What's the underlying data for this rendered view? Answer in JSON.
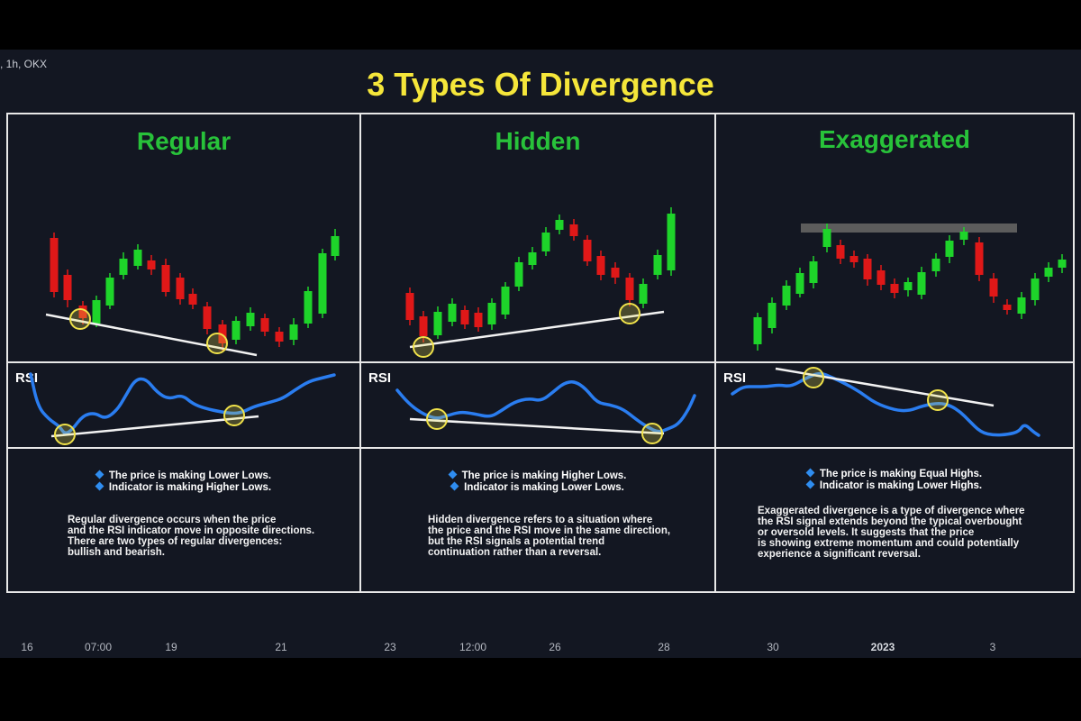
{
  "window": {
    "symbol_label": ", 1h, OKX",
    "title": "3 Types Of Divergence"
  },
  "colors": {
    "background": "#131722",
    "title": "#f5e63a",
    "panel_title": "#28c23a",
    "bull_candle": "#1ed42a",
    "bear_candle": "#e01818",
    "rsi_line": "#2a7df0",
    "highlight_circle": "#f0e24a"
  },
  "panels": [
    {
      "title": "Regular",
      "rsi_label": "RSI",
      "bullets": [
        "The price is making Lower Lows.",
        "Indicator is making Higher Lows."
      ],
      "description": "Regular divergence occurs when the price\nand the RSI indicator move in opposite directions.\nThere are two types of regular divergences:\nbullish and bearish."
    },
    {
      "title": "Hidden",
      "rsi_label": "RSI",
      "bullets": [
        "The price is making Higher Lows.",
        "Indicator is making Lower Lows."
      ],
      "description": "Hidden divergence refers to a situation where\nthe price and the RSI move in the same direction,\nbut the RSI signals a potential trend\ncontinuation rather than a reversal."
    },
    {
      "title": "Exaggerated",
      "rsi_label": "RSI",
      "bullets": [
        "The price is making Equal Highs.",
        "Indicator is making Lower Highs."
      ],
      "description": "Exaggerated divergence is a type of divergence where\nthe RSI signal extends beyond the typical overbought\nor oversold levels. It suggests that the price\nis showing extreme momentum and could potentially\nexperience a significant reversal."
    }
  ],
  "time_axis": {
    "ticks": [
      "16",
      "07:00",
      "19",
      "21",
      "23",
      "12:00",
      "26",
      "28",
      "30",
      "2023",
      "3"
    ],
    "bold_tick": "2023"
  }
}
